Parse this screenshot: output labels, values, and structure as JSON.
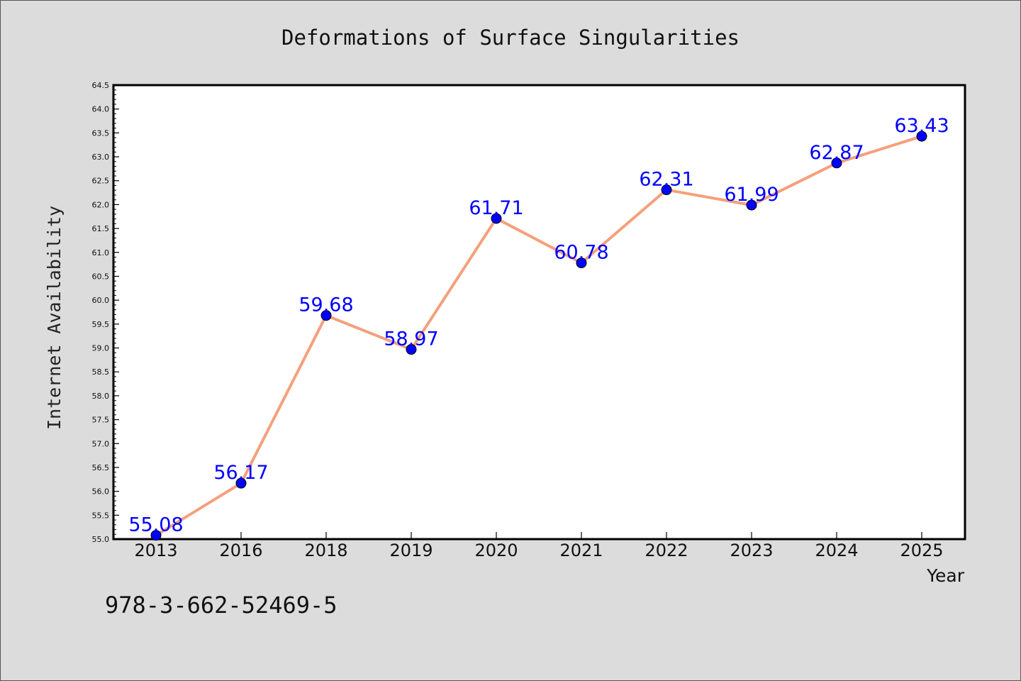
{
  "chart_data": {
    "type": "line",
    "title": "Deformations of Surface Singularities",
    "xlabel": "Year",
    "ylabel": "Internet Availability",
    "categories": [
      "2013",
      "2016",
      "2018",
      "2019",
      "2020",
      "2021",
      "2022",
      "2023",
      "2024",
      "2025"
    ],
    "series": [
      {
        "values": [
          55.08,
          56.17,
          59.68,
          58.97,
          61.71,
          60.78,
          62.31,
          61.99,
          62.87,
          63.43
        ],
        "data_labels": [
          "55.08",
          "56.17",
          "59.68",
          "58.97",
          "61.71",
          "60.78",
          "62.31",
          "61.99",
          "62.87",
          "63.43"
        ]
      }
    ],
    "ylim": [
      55.0,
      64.5
    ],
    "yticks": [
      "55.0",
      "55.5",
      "56.0",
      "56.5",
      "57.0",
      "57.5",
      "58.0",
      "58.5",
      "59.0",
      "59.5",
      "60.0",
      "60.5",
      "61.0",
      "61.5",
      "62.0",
      "62.5",
      "63.0",
      "63.5",
      "64.0",
      "64.5"
    ],
    "grid": false,
    "line_color": "#f4a07c",
    "marker_color": "#0000ff",
    "label_color": "#0000ff",
    "annotation": "978-3-662-52469-5"
  }
}
